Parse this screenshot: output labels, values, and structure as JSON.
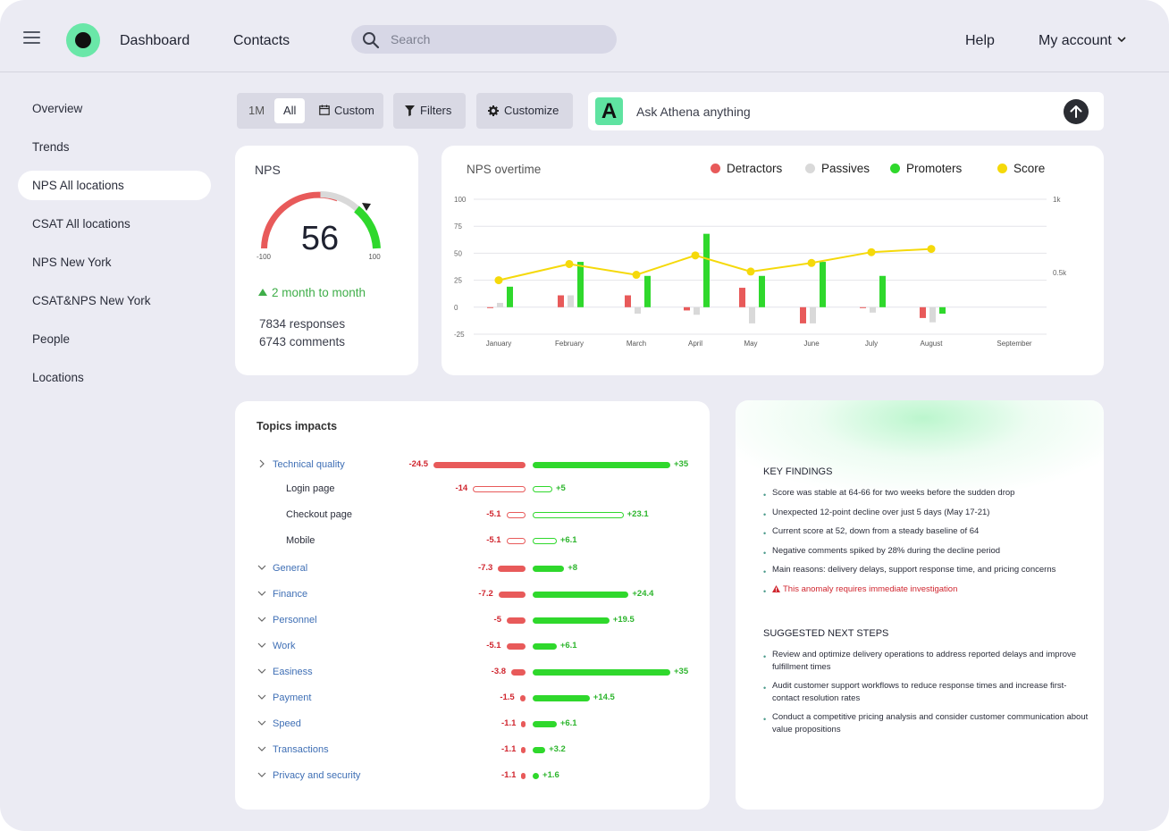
{
  "header": {
    "nav": [
      "Dashboard",
      "Contacts"
    ],
    "search_placeholder": "Search",
    "help": "Help",
    "account": "My account"
  },
  "sidebar": {
    "items": [
      {
        "label": "Overview"
      },
      {
        "label": "Trends"
      },
      {
        "label": "NPS All locations",
        "active": true
      },
      {
        "label": "CSAT All locations"
      },
      {
        "label": "NPS New York"
      },
      {
        "label": "CSAT&NPS New York"
      },
      {
        "label": "People"
      },
      {
        "label": "Locations"
      }
    ]
  },
  "toolbar": {
    "range_1m": "1M",
    "range_all": "All",
    "range_custom": "Custom",
    "filters": "Filters",
    "customize": "Customize",
    "ask_placeholder": "Ask Athena anything",
    "ask_logo": "A"
  },
  "nps": {
    "title": "NPS",
    "score": "56",
    "min": "-100",
    "max": "100",
    "trend": "2 month to month",
    "responses": "7834 responses",
    "comments": "6743 comments"
  },
  "colors": {
    "detractors": "#e85a5a",
    "passives": "#d9d9d9",
    "promoters": "#2fd82c",
    "score": "#f5d90a"
  },
  "chart_data": {
    "type": "bar",
    "title": "NPS overtime",
    "categories": [
      "January",
      "February",
      "March",
      "April",
      "May",
      "June",
      "July",
      "August",
      "September"
    ],
    "y_left_ticks": [
      "100",
      "75",
      "50",
      "25",
      "0",
      "-25"
    ],
    "y_right_ticks": [
      "1k",
      "0.5k"
    ],
    "ylim": [
      -25,
      100
    ],
    "legend_position": "top-right",
    "grid": true,
    "series": [
      {
        "name": "Detractors",
        "type": "bar",
        "values": [
          0,
          11,
          11,
          -3,
          18,
          -15,
          0,
          -10,
          null
        ]
      },
      {
        "name": "Passives",
        "type": "bar",
        "values": [
          4,
          11,
          -6,
          -7,
          -15,
          -15,
          -5,
          -14,
          null
        ]
      },
      {
        "name": "Promoters",
        "type": "bar",
        "values": [
          19,
          42,
          29,
          68,
          29,
          42,
          29,
          -6,
          null
        ]
      },
      {
        "name": "Score",
        "type": "line",
        "values": [
          25,
          40,
          30,
          48,
          33,
          41,
          51,
          54,
          null
        ]
      }
    ]
  },
  "topics": {
    "title": "Topics impacts",
    "rows": [
      {
        "name": "Technical quality",
        "level": "top",
        "chevron": "right",
        "neg": "-24.5",
        "pos": "+35",
        "neg_value": -24.5,
        "pos_value": 35,
        "style": "fill"
      },
      {
        "name": "Login page",
        "level": "sub",
        "neg": "-14",
        "pos": "+5",
        "neg_value": -14,
        "pos_value": 5,
        "style": "outline"
      },
      {
        "name": "Checkout page",
        "level": "sub",
        "neg": "-5.1",
        "pos": "+23.1",
        "neg_value": -5.1,
        "pos_value": 23.1,
        "style": "outline"
      },
      {
        "name": "Mobile",
        "level": "sub",
        "neg": "-5.1",
        "pos": "+6.1",
        "neg_value": -5.1,
        "pos_value": 6.1,
        "style": "outline"
      },
      {
        "name": "General",
        "level": "top",
        "chevron": "down",
        "neg": "-7.3",
        "pos": "+8",
        "neg_value": -7.3,
        "pos_value": 8,
        "style": "fill"
      },
      {
        "name": "Finance",
        "level": "top",
        "chevron": "down",
        "neg": "-7.2",
        "pos": "+24.4",
        "neg_value": -7.2,
        "pos_value": 24.4,
        "style": "fill"
      },
      {
        "name": "Personnel",
        "level": "top",
        "chevron": "down",
        "neg": "-5",
        "pos": "+19.5",
        "neg_value": -5,
        "pos_value": 19.5,
        "style": "fill"
      },
      {
        "name": "Work",
        "level": "top",
        "chevron": "down",
        "neg": "-5.1",
        "pos": "+6.1",
        "neg_value": -5.1,
        "pos_value": 6.1,
        "style": "fill"
      },
      {
        "name": "Easiness",
        "level": "top",
        "chevron": "down",
        "neg": "-3.8",
        "pos": "+35",
        "neg_value": -3.8,
        "pos_value": 35,
        "style": "fill"
      },
      {
        "name": "Payment",
        "level": "top",
        "chevron": "down",
        "neg": "-1.5",
        "pos": "+14.5",
        "neg_value": -1.5,
        "pos_value": 14.5,
        "style": "fill"
      },
      {
        "name": "Speed",
        "level": "top",
        "chevron": "down",
        "neg": "-1.1",
        "pos": "+6.1",
        "neg_value": -1.1,
        "pos_value": 6.1,
        "style": "fill"
      },
      {
        "name": "Transactions",
        "level": "top",
        "chevron": "down",
        "neg": "-1.1",
        "pos": "+3.2",
        "neg_value": -1.1,
        "pos_value": 3.2,
        "style": "fill"
      },
      {
        "name": "Privacy and security",
        "level": "top",
        "chevron": "down",
        "neg": "-1.1",
        "pos": "+1.6",
        "neg_value": -1.1,
        "pos_value": 1.6,
        "style": "fill"
      }
    ]
  },
  "findings": {
    "title": "KEY FINDINGS",
    "items": [
      {
        "text": "Score was stable at 64-66 for two weeks before the sudden drop"
      },
      {
        "text": "Unexpected 12-point decline over just 5 days (May 17-21)"
      },
      {
        "text": "Current score at 52, down from a steady baseline of 64"
      },
      {
        "text": "Negative comments spiked by 28% during the decline period"
      },
      {
        "text": "Main reasons: delivery delays, support response time, and pricing concerns"
      },
      {
        "text": "This anomaly requires immediate investigation",
        "warning": true
      }
    ],
    "next_title": "SUGGESTED NEXT STEPS",
    "next_items": [
      "Review and optimize delivery operations to address reported delays and improve fulfillment times",
      "Audit customer support workflows to reduce response times and increase first-contact resolution rates",
      "Conduct a competitive pricing analysis and consider customer communication about value propositions"
    ]
  }
}
